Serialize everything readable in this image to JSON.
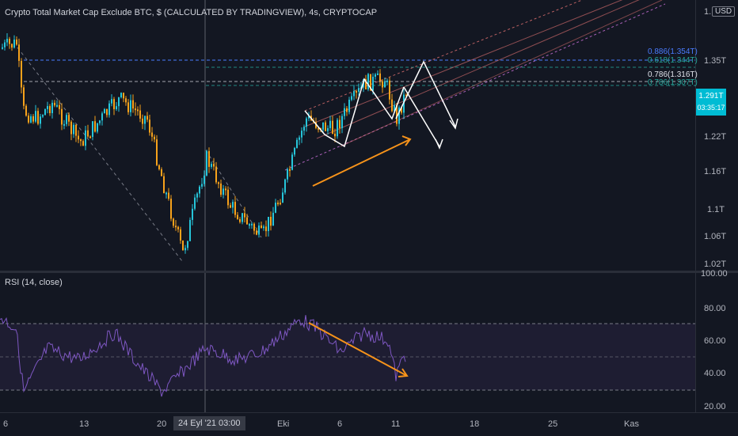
{
  "header": {
    "title": "Crypto Total Market Cap Exclude BTC, $ (CALCULATED BY TRADINGVIEW), 4s, CRYPTOCAP",
    "unit": "USD",
    "unit_prefix": "1."
  },
  "price_axis": {
    "labels": [
      "1.35T",
      "1.22T",
      "1.16T",
      "1.1T",
      "1.06T",
      "1.02T"
    ],
    "current_price": "1.291T",
    "countdown": "03:35:17",
    "fib_levels": [
      {
        "label": "0.886(1.354T)",
        "color": "#4a7cff"
      },
      {
        "label": "0.786(1.316T)",
        "color": "#e0e3eb"
      },
      {
        "label": "0.618(1.344T)",
        "color": "#26a69a"
      },
      {
        "label": "0.786(1.307T)",
        "color": "#26a69a"
      }
    ]
  },
  "rsi": {
    "title": "RSI (14, close)",
    "axis_labels": [
      "100.00",
      "80.00",
      "60.00",
      "40.00",
      "20.00"
    ],
    "line_color": "#7e57c2",
    "band_color": "#7e57c2"
  },
  "time_axis": {
    "labels": [
      "6",
      "13",
      "20",
      "Eki",
      "6",
      "11",
      "18",
      "25",
      "Kas"
    ],
    "highlighted": "24 Eyl '21   03:00"
  },
  "colors": {
    "up_candle": "#26c6da",
    "down_candle": "#f7a21b",
    "background": "#131722",
    "arrow_orange": "#f7931a",
    "projection": "#ffffff"
  }
}
